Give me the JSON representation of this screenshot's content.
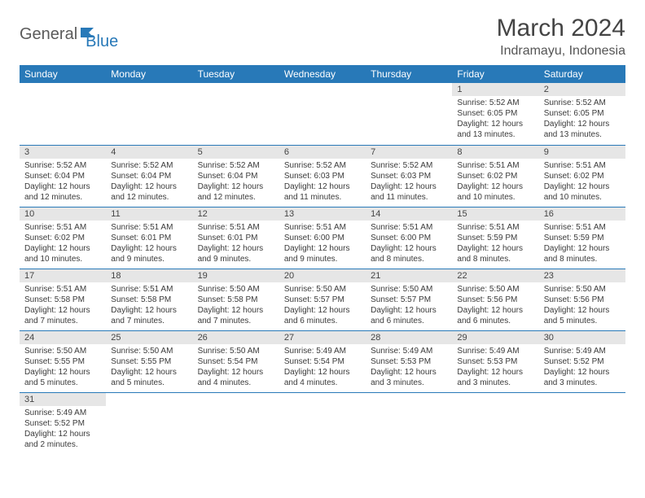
{
  "logo": {
    "part1": "General",
    "part2": "Blue"
  },
  "title": "March 2024",
  "subtitle": "Indramayu, Indonesia",
  "colors": {
    "header_bg": "#2879b8",
    "header_fg": "#ffffff",
    "daynum_bg": "#e6e6e6",
    "border": "#2879b8",
    "text": "#3a3a3a",
    "background": "#ffffff"
  },
  "typography": {
    "title_fontsize": 30,
    "subtitle_fontsize": 16,
    "header_fontsize": 12,
    "daynum_fontsize": 11,
    "body_fontsize": 10
  },
  "day_headers": [
    "Sunday",
    "Monday",
    "Tuesday",
    "Wednesday",
    "Thursday",
    "Friday",
    "Saturday"
  ],
  "weeks": [
    [
      null,
      null,
      null,
      null,
      null,
      {
        "n": "1",
        "sunrise": "5:52 AM",
        "sunset": "6:05 PM",
        "day_h": "12",
        "day_m": "13"
      },
      {
        "n": "2",
        "sunrise": "5:52 AM",
        "sunset": "6:05 PM",
        "day_h": "12",
        "day_m": "13"
      }
    ],
    [
      {
        "n": "3",
        "sunrise": "5:52 AM",
        "sunset": "6:04 PM",
        "day_h": "12",
        "day_m": "12"
      },
      {
        "n": "4",
        "sunrise": "5:52 AM",
        "sunset": "6:04 PM",
        "day_h": "12",
        "day_m": "12"
      },
      {
        "n": "5",
        "sunrise": "5:52 AM",
        "sunset": "6:04 PM",
        "day_h": "12",
        "day_m": "12"
      },
      {
        "n": "6",
        "sunrise": "5:52 AM",
        "sunset": "6:03 PM",
        "day_h": "12",
        "day_m": "11"
      },
      {
        "n": "7",
        "sunrise": "5:52 AM",
        "sunset": "6:03 PM",
        "day_h": "12",
        "day_m": "11"
      },
      {
        "n": "8",
        "sunrise": "5:51 AM",
        "sunset": "6:02 PM",
        "day_h": "12",
        "day_m": "10"
      },
      {
        "n": "9",
        "sunrise": "5:51 AM",
        "sunset": "6:02 PM",
        "day_h": "12",
        "day_m": "10"
      }
    ],
    [
      {
        "n": "10",
        "sunrise": "5:51 AM",
        "sunset": "6:02 PM",
        "day_h": "12",
        "day_m": "10"
      },
      {
        "n": "11",
        "sunrise": "5:51 AM",
        "sunset": "6:01 PM",
        "day_h": "12",
        "day_m": "9"
      },
      {
        "n": "12",
        "sunrise": "5:51 AM",
        "sunset": "6:01 PM",
        "day_h": "12",
        "day_m": "9"
      },
      {
        "n": "13",
        "sunrise": "5:51 AM",
        "sunset": "6:00 PM",
        "day_h": "12",
        "day_m": "9"
      },
      {
        "n": "14",
        "sunrise": "5:51 AM",
        "sunset": "6:00 PM",
        "day_h": "12",
        "day_m": "8"
      },
      {
        "n": "15",
        "sunrise": "5:51 AM",
        "sunset": "5:59 PM",
        "day_h": "12",
        "day_m": "8"
      },
      {
        "n": "16",
        "sunrise": "5:51 AM",
        "sunset": "5:59 PM",
        "day_h": "12",
        "day_m": "8"
      }
    ],
    [
      {
        "n": "17",
        "sunrise": "5:51 AM",
        "sunset": "5:58 PM",
        "day_h": "12",
        "day_m": "7"
      },
      {
        "n": "18",
        "sunrise": "5:51 AM",
        "sunset": "5:58 PM",
        "day_h": "12",
        "day_m": "7"
      },
      {
        "n": "19",
        "sunrise": "5:50 AM",
        "sunset": "5:58 PM",
        "day_h": "12",
        "day_m": "7"
      },
      {
        "n": "20",
        "sunrise": "5:50 AM",
        "sunset": "5:57 PM",
        "day_h": "12",
        "day_m": "6"
      },
      {
        "n": "21",
        "sunrise": "5:50 AM",
        "sunset": "5:57 PM",
        "day_h": "12",
        "day_m": "6"
      },
      {
        "n": "22",
        "sunrise": "5:50 AM",
        "sunset": "5:56 PM",
        "day_h": "12",
        "day_m": "6"
      },
      {
        "n": "23",
        "sunrise": "5:50 AM",
        "sunset": "5:56 PM",
        "day_h": "12",
        "day_m": "5"
      }
    ],
    [
      {
        "n": "24",
        "sunrise": "5:50 AM",
        "sunset": "5:55 PM",
        "day_h": "12",
        "day_m": "5"
      },
      {
        "n": "25",
        "sunrise": "5:50 AM",
        "sunset": "5:55 PM",
        "day_h": "12",
        "day_m": "5"
      },
      {
        "n": "26",
        "sunrise": "5:50 AM",
        "sunset": "5:54 PM",
        "day_h": "12",
        "day_m": "4"
      },
      {
        "n": "27",
        "sunrise": "5:49 AM",
        "sunset": "5:54 PM",
        "day_h": "12",
        "day_m": "4"
      },
      {
        "n": "28",
        "sunrise": "5:49 AM",
        "sunset": "5:53 PM",
        "day_h": "12",
        "day_m": "3"
      },
      {
        "n": "29",
        "sunrise": "5:49 AM",
        "sunset": "5:53 PM",
        "day_h": "12",
        "day_m": "3"
      },
      {
        "n": "30",
        "sunrise": "5:49 AM",
        "sunset": "5:52 PM",
        "day_h": "12",
        "day_m": "3"
      }
    ],
    [
      {
        "n": "31",
        "sunrise": "5:49 AM",
        "sunset": "5:52 PM",
        "day_h": "12",
        "day_m": "2"
      },
      null,
      null,
      null,
      null,
      null,
      null
    ]
  ],
  "labels": {
    "sunrise": "Sunrise:",
    "sunset": "Sunset:",
    "daylight": "Daylight:",
    "hours": "hours",
    "and": "and",
    "minutes": "minutes."
  }
}
